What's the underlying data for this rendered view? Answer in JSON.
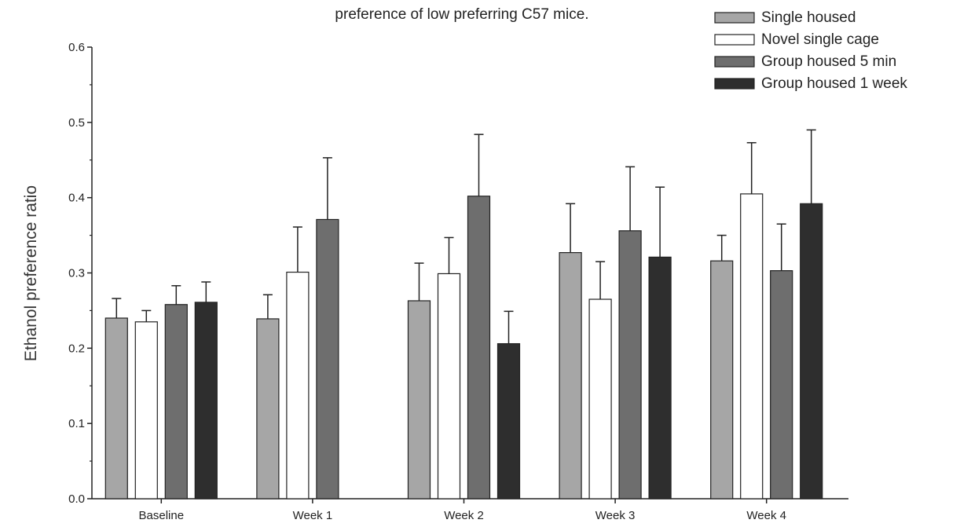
{
  "chart_data": {
    "type": "bar",
    "title": "preference of low preferring C57 mice.",
    "xlabel": "",
    "ylabel": "Ethanol preference ratio",
    "ylim": [
      0,
      0.6
    ],
    "yticks": [
      "0.0",
      "0.1",
      "0.2",
      "0.3",
      "0.4",
      "0.5",
      "0.6"
    ],
    "categories": [
      "Baseline",
      "Week 1",
      "Week 2",
      "Week 3",
      "Week 4"
    ],
    "legend_position": "top-right",
    "grid": false,
    "series": [
      {
        "name": "Single housed",
        "color": "#a6a6a6",
        "values": [
          0.24,
          0.239,
          0.263,
          0.327,
          0.316
        ],
        "error": [
          0.026,
          0.032,
          0.05,
          0.065,
          0.034
        ]
      },
      {
        "name": "Novel single cage",
        "color": "#ffffff",
        "values": [
          0.235,
          0.301,
          0.299,
          0.265,
          0.405
        ],
        "error": [
          0.015,
          0.06,
          0.048,
          0.05,
          0.068
        ]
      },
      {
        "name": "Group housed 5 min",
        "color": "#6e6e6e",
        "values": [
          0.258,
          0.371,
          0.402,
          0.356,
          0.303
        ],
        "error": [
          0.025,
          0.082,
          0.082,
          0.085,
          0.062
        ]
      },
      {
        "name": "Group housed 1 week",
        "color": "#2e2e2e",
        "values": [
          0.261,
          null,
          0.206,
          0.321,
          0.392
        ],
        "error": [
          0.027,
          null,
          0.043,
          0.093,
          0.098
        ]
      }
    ]
  }
}
